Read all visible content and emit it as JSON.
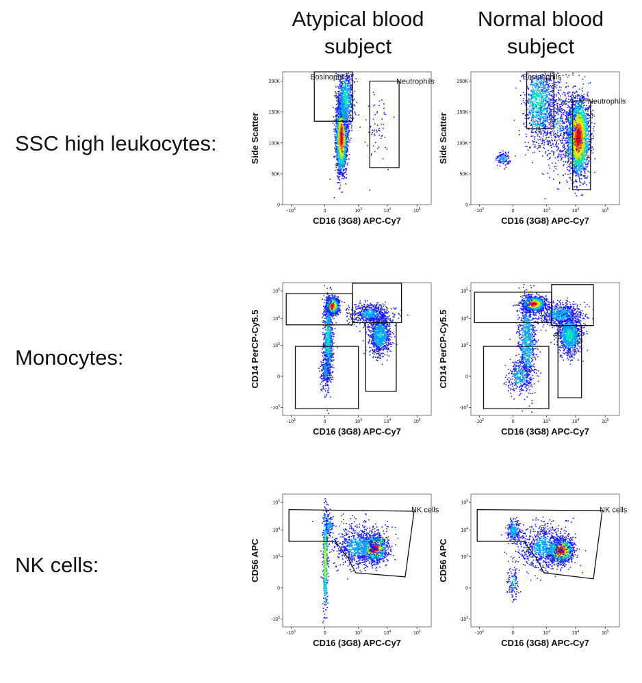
{
  "column_titles": [
    {
      "line1": "Atypical blood",
      "line2": "subject"
    },
    {
      "line1": "Normal blood",
      "line2": "subject"
    }
  ],
  "row_labels": [
    "SSC high leukocytes:",
    "Monocytes:",
    "NK cells:"
  ],
  "colors": {
    "density": [
      "#1a1aff",
      "#00a0ff",
      "#00e0c0",
      "#b0f000",
      "#ffe000",
      "#ff6000",
      "#e00000"
    ],
    "gate": "#111111",
    "frame": "#555555"
  },
  "chart_data": [
    {
      "type": "scatter",
      "id": "ssc-atypical",
      "style": "density",
      "xlabel": "CD16 (3G8) APC-Cy7",
      "ylabel": "Side Scatter",
      "x_scale": "biexponential",
      "y_scale": "linear",
      "xlim": [
        -2000,
        300000
      ],
      "ylim": [
        0,
        215000
      ],
      "x_ticks": [
        {
          "label": "-10",
          "sup": "3",
          "value": -1000
        },
        {
          "label": "0",
          "sup": "",
          "value": 0
        },
        {
          "label": "10",
          "sup": "3",
          "value": 1000
        },
        {
          "label": "10",
          "sup": "4",
          "value": 10000
        },
        {
          "label": "10",
          "sup": "5",
          "value": 100000
        }
      ],
      "y_ticks": [
        {
          "label": "0",
          "value": 0
        },
        {
          "label": "50K",
          "value": 50000
        },
        {
          "label": "100K",
          "value": 100000
        },
        {
          "label": "150K",
          "value": 150000
        },
        {
          "label": "200K",
          "value": 200000
        }
      ],
      "populations": [
        {
          "cx": 200,
          "cy": 110000,
          "sx": 0.09,
          "sy": 28000,
          "n": 2400,
          "peak": 0.95
        },
        {
          "cx": 300,
          "cy": 170000,
          "sx": 0.13,
          "sy": 25000,
          "n": 700,
          "peak": 0.35
        },
        {
          "cx": 4000,
          "cy": 130000,
          "sx": 0.25,
          "sy": 30000,
          "n": 60,
          "peak": 0.1
        }
      ],
      "gates": [
        {
          "label": "Eosinophils",
          "label_pos": "top-left",
          "points": [
            [
              -100,
              215000
            ],
            [
              -100,
              135000
            ],
            [
              600,
              135000
            ],
            [
              600,
              215000
            ]
          ]
        },
        {
          "label": "Neutrophils",
          "label_pos": "top-right",
          "points": [
            [
              2500,
              200000
            ],
            [
              25000,
              200000
            ],
            [
              25000,
              60000
            ],
            [
              2500,
              60000
            ]
          ]
        }
      ]
    },
    {
      "type": "scatter",
      "id": "ssc-normal",
      "style": "density",
      "xlabel": "CD16 (3G8) APC-Cy7",
      "ylabel": "Side Scatter",
      "x_scale": "biexponential",
      "y_scale": "linear",
      "xlim": [
        -2000,
        300000
      ],
      "ylim": [
        0,
        215000
      ],
      "x_ticks": [
        {
          "label": "-10",
          "sup": "3",
          "value": -1000
        },
        {
          "label": "0",
          "sup": "",
          "value": 0
        },
        {
          "label": "10",
          "sup": "3",
          "value": 1000
        },
        {
          "label": "10",
          "sup": "4",
          "value": 10000
        },
        {
          "label": "10",
          "sup": "5",
          "value": 100000
        }
      ],
      "y_ticks": [
        {
          "label": "0",
          "value": 0
        },
        {
          "label": "50K",
          "value": 50000
        },
        {
          "label": "100K",
          "value": 100000
        },
        {
          "label": "150K",
          "value": 150000
        },
        {
          "label": "200K",
          "value": 200000
        }
      ],
      "populations": [
        {
          "cx": 12000,
          "cy": 110000,
          "sx": 0.18,
          "sy": 30000,
          "n": 2600,
          "peak": 0.95
        },
        {
          "cx": 500,
          "cy": 165000,
          "sx": 0.25,
          "sy": 30000,
          "n": 900,
          "peak": 0.4
        },
        {
          "cx": 2500,
          "cy": 130000,
          "sx": 0.4,
          "sy": 40000,
          "n": 700,
          "peak": 0.15
        },
        {
          "cx": -100,
          "cy": 75000,
          "sx": 0.12,
          "sy": 6000,
          "n": 120,
          "peak": 0.2
        }
      ],
      "gates": [
        {
          "label": "Eosinophils",
          "label_pos": "top-left",
          "points": [
            [
              150,
              215000
            ],
            [
              150,
              123000
            ],
            [
              1800,
              123000
            ],
            [
              1800,
              215000
            ]
          ]
        },
        {
          "label": "Neutrophils",
          "label_pos": "top-right",
          "points": [
            [
              8000,
              168000
            ],
            [
              32000,
              168000
            ],
            [
              32000,
              24000
            ],
            [
              8000,
              24000
            ]
          ]
        }
      ]
    },
    {
      "type": "scatter",
      "id": "mono-atypical",
      "style": "density",
      "xlabel": "CD16 (3G8) APC-Cy7",
      "ylabel": "CD14 PerCP-Cy5.5",
      "x_scale": "biexponential",
      "y_scale": "biexponential",
      "xlim": [
        -2000,
        300000
      ],
      "ylim": [
        -2000,
        200000
      ],
      "x_ticks": [
        {
          "label": "-10",
          "sup": "3",
          "value": -1000
        },
        {
          "label": "0",
          "sup": "",
          "value": 0
        },
        {
          "label": "10",
          "sup": "3",
          "value": 1000
        },
        {
          "label": "10",
          "sup": "4",
          "value": 10000
        },
        {
          "label": "10",
          "sup": "5",
          "value": 100000
        }
      ],
      "y_ticks": [
        {
          "label": "-10",
          "sup": "3",
          "value": -1000
        },
        {
          "label": "0",
          "sup": "",
          "value": 0
        },
        {
          "label": "10",
          "sup": "3",
          "value": 1000
        },
        {
          "label": "10",
          "sup": "4",
          "value": 10000
        },
        {
          "label": "10",
          "sup": "5",
          "value": 100000
        }
      ],
      "populations": [
        {
          "cx": 60,
          "cy": 30000,
          "sx": 0.1,
          "sy": 0.14,
          "n": 1200,
          "peak": 0.95
        },
        {
          "cx": 20,
          "cy": 1500,
          "sx": 0.08,
          "sy": 0.8,
          "n": 900,
          "peak": 0.35
        },
        {
          "cx": 2500,
          "cy": 15000,
          "sx": 0.35,
          "sy": 0.18,
          "n": 600,
          "peak": 0.2
        },
        {
          "cx": 5500,
          "cy": 2500,
          "sx": 0.18,
          "sy": 0.35,
          "n": 900,
          "peak": 0.3
        },
        {
          "cx": 0,
          "cy": 50,
          "sx": 0.08,
          "sy": 0.3,
          "n": 200,
          "peak": 0.2
        }
      ],
      "gates": [
        {
          "label": "",
          "points": [
            [
              -1500,
              80000
            ],
            [
              600,
              80000
            ],
            [
              600,
              5800
            ],
            [
              -1500,
              5800
            ]
          ]
        },
        {
          "label": "",
          "points": [
            [
              600,
              190000
            ],
            [
              30000,
              190000
            ],
            [
              30000,
              7000
            ],
            [
              600,
              7000
            ]
          ]
        },
        {
          "label": "",
          "points": [
            [
              1800,
              7000
            ],
            [
              20000,
              7000
            ],
            [
              20000,
              -200
            ],
            [
              1800,
              -200
            ]
          ]
        },
        {
          "label": "",
          "points": [
            [
              -700,
              900
            ],
            [
              1000,
              900
            ],
            [
              1000,
              -1100
            ],
            [
              -700,
              -1100
            ]
          ]
        }
      ]
    },
    {
      "type": "scatter",
      "id": "mono-normal",
      "style": "density",
      "xlabel": "CD16 (3G8) APC-Cy7",
      "ylabel": "CD14 PerCP-Cy5.5",
      "x_scale": "biexponential",
      "y_scale": "biexponential",
      "xlim": [
        -2000,
        300000
      ],
      "ylim": [
        -2000,
        200000
      ],
      "x_ticks": [
        {
          "label": "-10",
          "sup": "3",
          "value": -1000
        },
        {
          "label": "0",
          "sup": "",
          "value": 0
        },
        {
          "label": "10",
          "sup": "3",
          "value": 1000
        },
        {
          "label": "10",
          "sup": "4",
          "value": 10000
        },
        {
          "label": "10",
          "sup": "5",
          "value": 100000
        }
      ],
      "y_ticks": [
        {
          "label": "-10",
          "sup": "3",
          "value": -1000
        },
        {
          "label": "0",
          "sup": "",
          "value": 0
        },
        {
          "label": "10",
          "sup": "3",
          "value": 1000
        },
        {
          "label": "10",
          "sup": "4",
          "value": 10000
        },
        {
          "label": "10",
          "sup": "5",
          "value": 100000
        }
      ],
      "populations": [
        {
          "cx": 300,
          "cy": 35000,
          "sx": 0.18,
          "sy": 0.12,
          "n": 1400,
          "peak": 0.95
        },
        {
          "cx": 150,
          "cy": 1500,
          "sx": 0.15,
          "sy": 0.8,
          "n": 900,
          "peak": 0.3
        },
        {
          "cx": 3000,
          "cy": 15000,
          "sx": 0.35,
          "sy": 0.2,
          "n": 700,
          "peak": 0.25
        },
        {
          "cx": 6000,
          "cy": 2500,
          "sx": 0.2,
          "sy": 0.35,
          "n": 1000,
          "peak": 0.35
        },
        {
          "cx": 50,
          "cy": 0,
          "sx": 0.2,
          "sy": 0.3,
          "n": 300,
          "peak": 0.25
        }
      ],
      "gates": [
        {
          "label": "",
          "points": [
            [
              -1500,
              90000
            ],
            [
              1500,
              90000
            ],
            [
              1500,
              7000
            ],
            [
              -1500,
              7000
            ]
          ]
        },
        {
          "label": "",
          "points": [
            [
              1500,
              170000
            ],
            [
              40000,
              170000
            ],
            [
              40000,
              5500
            ],
            [
              1500,
              5500
            ]
          ]
        },
        {
          "label": "",
          "points": [
            [
              2500,
              5500
            ],
            [
              16000,
              5500
            ],
            [
              16000,
              -400
            ],
            [
              2500,
              -400
            ]
          ]
        },
        {
          "label": "",
          "points": [
            [
              -700,
              900
            ],
            [
              1200,
              900
            ],
            [
              1200,
              -1100
            ],
            [
              -700,
              -1100
            ]
          ]
        }
      ]
    },
    {
      "type": "scatter",
      "id": "nk-atypical",
      "style": "density",
      "xlabel": "CD16 (3G8) APC-Cy7",
      "ylabel": "CD56 APC",
      "x_scale": "biexponential",
      "y_scale": "biexponential",
      "xlim": [
        -2000,
        300000
      ],
      "ylim": [
        -2000,
        200000
      ],
      "x_ticks": [
        {
          "label": "-10",
          "sup": "3",
          "value": -1000
        },
        {
          "label": "0",
          "sup": "",
          "value": 0
        },
        {
          "label": "10",
          "sup": "3",
          "value": 1000
        },
        {
          "label": "10",
          "sup": "4",
          "value": 10000
        },
        {
          "label": "10",
          "sup": "5",
          "value": 100000
        }
      ],
      "y_ticks": [
        {
          "label": "-10",
          "sup": "3",
          "value": -1000
        },
        {
          "label": "0",
          "sup": "",
          "value": 0
        },
        {
          "label": "10",
          "sup": "3",
          "value": 1000
        },
        {
          "label": "10",
          "sup": "4",
          "value": 10000
        },
        {
          "label": "10",
          "sup": "5",
          "value": 100000
        }
      ],
      "populations": [
        {
          "cx": 3500,
          "cy": 2200,
          "sx": 0.2,
          "sy": 0.22,
          "n": 1300,
          "peak": 0.95
        },
        {
          "cx": 1000,
          "cy": 2500,
          "sx": 0.45,
          "sy": 0.4,
          "n": 900,
          "peak": 0.2
        },
        {
          "cx": 0,
          "cy": 800,
          "sx": 0.04,
          "sy": 1.0,
          "n": 500,
          "peak": 0.6
        },
        {
          "cx": 30,
          "cy": 15000,
          "sx": 0.06,
          "sy": 0.2,
          "n": 120,
          "peak": 0.3
        }
      ],
      "gates": [
        {
          "label": "NK cells",
          "label_pos": "top-right",
          "points": [
            [
              -1200,
              55000
            ],
            [
              80000,
              48000
            ],
            [
              40000,
              120
            ],
            [
              800,
              200
            ],
            [
              400,
              900
            ],
            [
              100,
              3800
            ],
            [
              -1200,
              3800
            ]
          ]
        }
      ]
    },
    {
      "type": "scatter",
      "id": "nk-normal",
      "style": "density",
      "xlabel": "CD16 (3G8) APC-Cy7",
      "ylabel": "CD56 APC",
      "x_scale": "biexponential",
      "y_scale": "biexponential",
      "xlim": [
        -2000,
        300000
      ],
      "ylim": [
        -2000,
        200000
      ],
      "x_ticks": [
        {
          "label": "-10",
          "sup": "3",
          "value": -1000
        },
        {
          "label": "0",
          "sup": "",
          "value": 0
        },
        {
          "label": "10",
          "sup": "3",
          "value": 1000
        },
        {
          "label": "10",
          "sup": "4",
          "value": 10000
        },
        {
          "label": "10",
          "sup": "5",
          "value": 100000
        }
      ],
      "y_ticks": [
        {
          "label": "-10",
          "sup": "3",
          "value": -1000
        },
        {
          "label": "0",
          "sup": "",
          "value": 0
        },
        {
          "label": "10",
          "sup": "3",
          "value": 1000
        },
        {
          "label": "10",
          "sup": "4",
          "value": 10000
        },
        {
          "label": "10",
          "sup": "5",
          "value": 100000
        }
      ],
      "populations": [
        {
          "cx": 3000,
          "cy": 1800,
          "sx": 0.2,
          "sy": 0.2,
          "n": 1300,
          "peak": 0.95
        },
        {
          "cx": 800,
          "cy": 2500,
          "sx": 0.45,
          "sy": 0.4,
          "n": 900,
          "peak": 0.2
        },
        {
          "cx": 0,
          "cy": 10000,
          "sx": 0.1,
          "sy": 0.2,
          "n": 250,
          "peak": 0.3
        },
        {
          "cx": 0,
          "cy": 50,
          "sx": 0.1,
          "sy": 0.3,
          "n": 120,
          "peak": 0.2
        }
      ],
      "gates": [
        {
          "label": "NK cells",
          "label_pos": "top-right",
          "points": [
            [
              -1200,
              55000
            ],
            [
              80000,
              50000
            ],
            [
              40000,
              90
            ],
            [
              800,
              200
            ],
            [
              400,
              900
            ],
            [
              100,
              3800
            ],
            [
              -1200,
              3800
            ]
          ]
        }
      ]
    }
  ]
}
